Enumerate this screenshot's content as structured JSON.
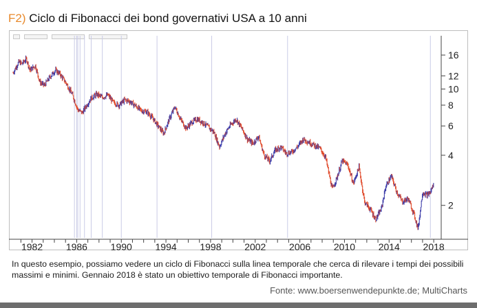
{
  "header": {
    "figure_tag": "F2)",
    "title": "Ciclo di Fibonacci dei bond governativi USA a 10 anni"
  },
  "caption": "In questo esempio, possiamo vedere un ciclo di Fibonacci sulla linea temporale che cerca di rilevare i tempi dei possibili massimi e minimi. Gennaio 2018 è stato un obiettivo temporale di Fibonacci importante.",
  "source": "Fonte: www.boersenwendepunkte.de; MultiCharts",
  "colors": {
    "up_bar": "#3a3aa8",
    "down_bar": "#e0492a",
    "cycle_line": "#c9cbe6",
    "frame": "#bdbdbd",
    "tag": "#e8892b"
  },
  "chart_data": {
    "type": "line",
    "title": "",
    "y_scale": "log",
    "ylim": [
      1.3,
      19
    ],
    "xlim": [
      1980.3,
      2018.3
    ],
    "x_ticks": [
      "1982",
      "1986",
      "1990",
      "1994",
      "1998",
      "2002",
      "2006",
      "2010",
      "2014",
      "2018"
    ],
    "y_ticks": [
      2,
      4,
      6,
      8,
      10,
      12,
      16
    ],
    "y_axis_side": "right",
    "grid": false,
    "fibonacci_cycle_lines": [
      1985.8,
      1986.0,
      1986.1,
      1986.3,
      1986.7,
      1987.3,
      1988.3,
      1990.0,
      1993.2,
      1998.1,
      2004.9,
      2017.7
    ],
    "series": [
      {
        "x": [
          1980.3,
          1980.8,
          1981.1,
          1981.5,
          1981.8,
          1982.3,
          1982.7,
          1983.1,
          1983.6,
          1984.1,
          1984.5,
          1985.0,
          1985.6,
          1986.1,
          1986.5,
          1986.9,
          1987.3,
          1987.8,
          1988.3,
          1988.8,
          1989.3,
          1989.8,
          1990.3,
          1990.8,
          1991.3,
          1991.8,
          1992.3,
          1992.8,
          1993.3,
          1993.8,
          1994.3,
          1994.8,
          1995.3,
          1995.8,
          1996.3,
          1996.8,
          1997.3,
          1997.8,
          1998.3,
          1998.8,
          1999.3,
          1999.8,
          2000.3,
          2000.8,
          2001.3,
          2001.8,
          2002.3,
          2002.8,
          2003.3,
          2003.8,
          2004.3,
          2004.8,
          2005.3,
          2005.8,
          2006.3,
          2006.8,
          2007.3,
          2007.8,
          2008.3,
          2008.9,
          2009.3,
          2009.8,
          2010.3,
          2010.8,
          2011.3,
          2011.8,
          2012.3,
          2012.8,
          2013.3,
          2013.7,
          2014.2,
          2014.7,
          2015.2,
          2015.7,
          2016.2,
          2016.6,
          2017.0,
          2017.4,
          2017.7,
          2018.0
        ],
        "y": [
          12.5,
          14.5,
          14.2,
          15.2,
          13.0,
          13.8,
          11.0,
          10.5,
          11.8,
          13.0,
          12.3,
          11.0,
          9.3,
          7.5,
          7.2,
          8.0,
          8.8,
          9.3,
          8.9,
          9.2,
          8.3,
          8.0,
          8.6,
          8.4,
          7.9,
          7.4,
          7.3,
          6.7,
          6.0,
          5.4,
          6.6,
          7.8,
          6.6,
          5.8,
          6.3,
          6.6,
          6.3,
          5.9,
          5.5,
          4.5,
          5.4,
          6.1,
          6.6,
          5.8,
          5.0,
          4.7,
          5.2,
          4.0,
          3.7,
          4.3,
          4.5,
          4.1,
          4.2,
          4.5,
          5.0,
          4.8,
          4.6,
          4.4,
          3.9,
          2.5,
          2.9,
          3.7,
          3.5,
          2.7,
          3.4,
          2.1,
          1.9,
          1.65,
          1.9,
          2.6,
          3.0,
          2.4,
          2.1,
          2.2,
          1.8,
          1.45,
          2.4,
          2.3,
          2.4,
          2.7
        ]
      }
    ]
  }
}
